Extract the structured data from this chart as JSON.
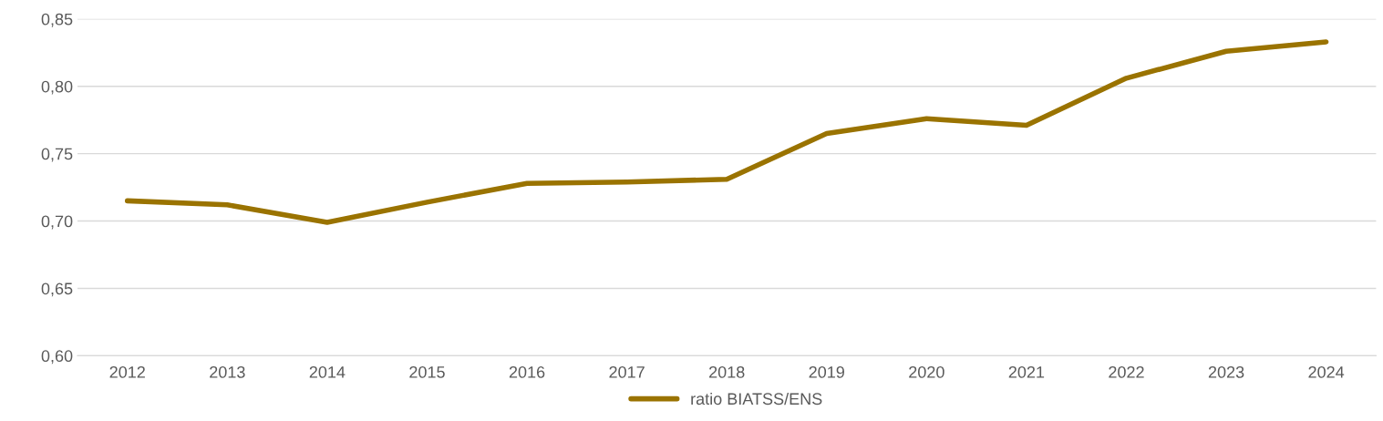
{
  "chart_data": {
    "type": "line",
    "categories": [
      "2012",
      "2013",
      "2014",
      "2015",
      "2016",
      "2017",
      "2018",
      "2019",
      "2020",
      "2021",
      "2022",
      "2023",
      "2024"
    ],
    "series": [
      {
        "name": "ratio BIATSS/ENS",
        "color": "#9a7300",
        "values": [
          0.715,
          0.712,
          0.699,
          0.714,
          0.728,
          0.729,
          0.731,
          0.765,
          0.776,
          0.771,
          0.806,
          0.826,
          0.833
        ]
      }
    ],
    "ylim": [
      0.6,
      0.85
    ],
    "yticks": [
      {
        "value": 0.6,
        "label": "0,60"
      },
      {
        "value": 0.65,
        "label": "0,65"
      },
      {
        "value": 0.7,
        "label": "0,70"
      },
      {
        "value": 0.75,
        "label": "0,75"
      },
      {
        "value": 0.8,
        "label": "0,80"
      },
      {
        "value": 0.85,
        "label": "0,85"
      }
    ],
    "grid": "y",
    "legend": "bottom",
    "marker": "none",
    "line_style": "solid"
  }
}
